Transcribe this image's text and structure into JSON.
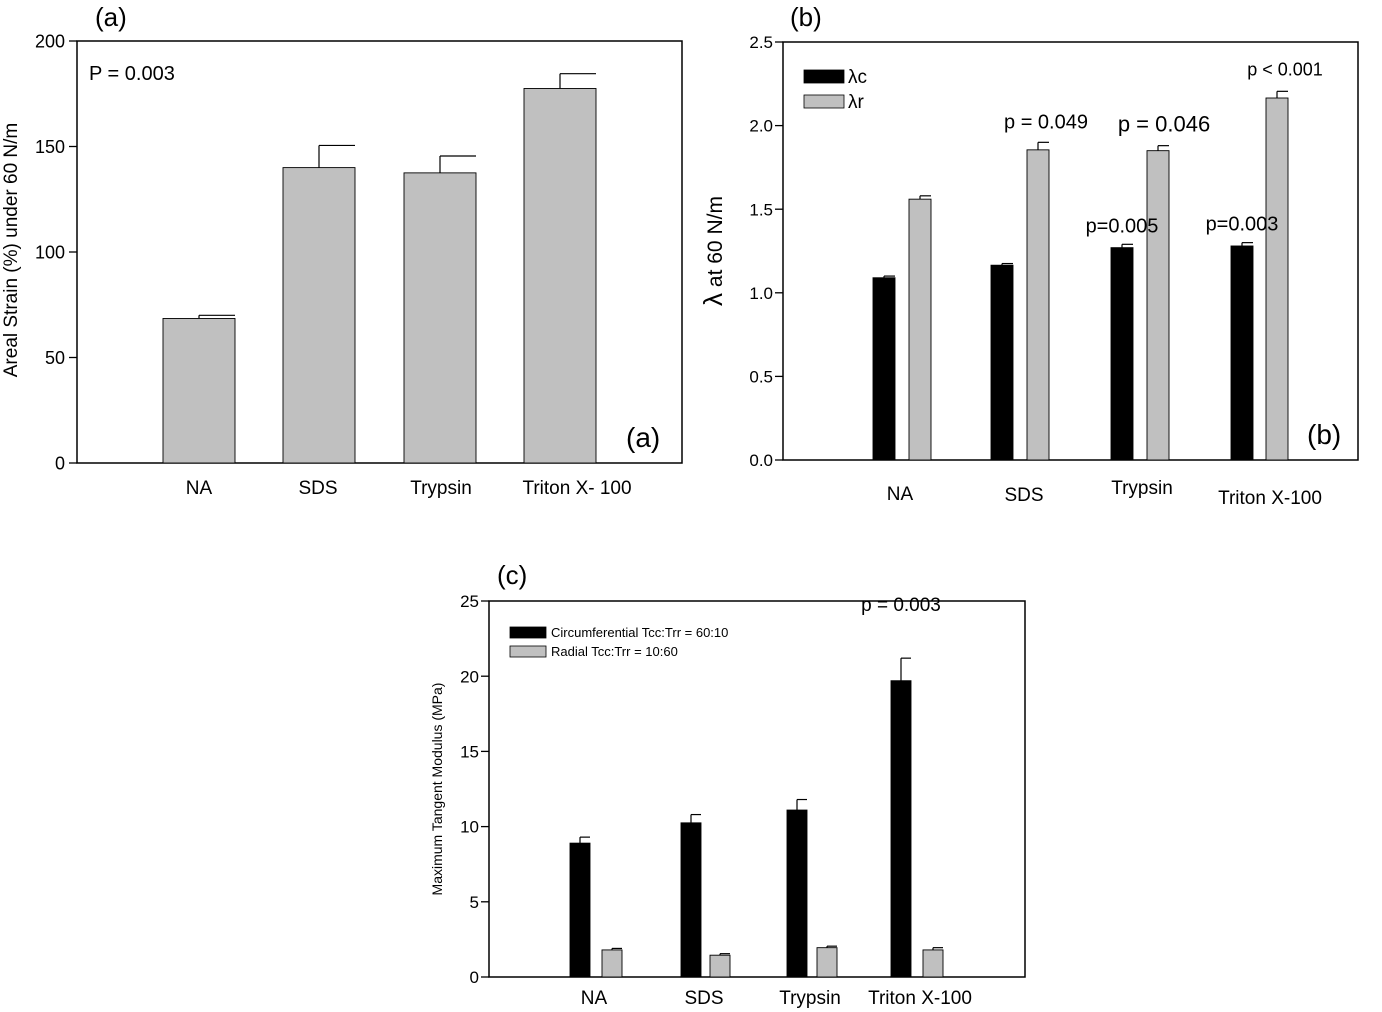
{
  "colors": {
    "light": "#c0c0c0",
    "dark": "#000000",
    "axis": "#000000"
  },
  "chart_data": [
    {
      "id": "a",
      "type": "bar",
      "panel_label": "(a)",
      "inner_label": "(a)",
      "title": "",
      "xlabel": "",
      "ylabel": "Areal Strain (%) under 60 N/m",
      "ylim": [
        0,
        200
      ],
      "yticks": [
        0,
        50,
        100,
        150,
        200
      ],
      "categories": [
        "NA",
        "SDS",
        "Trypsin",
        "Triton X-100"
      ],
      "category_display": [
        "NA",
        "SDS",
        "Trypsin",
        "Triton X- 100"
      ],
      "series": [
        {
          "name": "Areal Strain",
          "color": "#c0c0c0",
          "values": [
            68.5,
            140,
            137.5,
            177.5
          ],
          "errors": [
            1.5,
            10.5,
            8,
            7
          ]
        }
      ],
      "annotations": [
        {
          "text": "P = 0.003",
          "placement": "top-left"
        }
      ],
      "legend": null
    },
    {
      "id": "b",
      "type": "bar",
      "panel_label": "(b)",
      "inner_label": "(b)",
      "title": "",
      "xlabel": "",
      "ylabel_symbol": "λ",
      "ylabel_rest": " at 60 N/m",
      "ylim": [
        0,
        2.5
      ],
      "yticks": [
        "0.0",
        "0.5",
        "1.0",
        "1.5",
        "2.0",
        "2.5"
      ],
      "categories": [
        "NA",
        "SDS",
        "Trypsin",
        "Triton X-100"
      ],
      "series": [
        {
          "name": "λc",
          "color": "#000000",
          "values": [
            1.09,
            1.165,
            1.27,
            1.28
          ],
          "errors": [
            0.01,
            0.01,
            0.02,
            0.02
          ]
        },
        {
          "name": "λr",
          "color": "#c0c0c0",
          "values": [
            1.56,
            1.855,
            1.85,
            2.165
          ],
          "errors": [
            0.02,
            0.045,
            0.03,
            0.04
          ]
        }
      ],
      "annotations": [
        {
          "text": "p = 0.049",
          "category": "SDS",
          "series": "λr"
        },
        {
          "text": "p = 0.046",
          "category": "Trypsin",
          "series": "λr"
        },
        {
          "text": "p < 0.001",
          "category": "Triton X-100",
          "series": "λr"
        },
        {
          "text": "p=0.005",
          "category": "Trypsin",
          "series": "λc"
        },
        {
          "text": "p=0.003",
          "category": "Triton X-100",
          "series": "λc"
        }
      ],
      "legend": {
        "placement": "top-left",
        "entries": [
          "λc",
          "λr"
        ]
      }
    },
    {
      "id": "c",
      "type": "bar",
      "panel_label": "(c)",
      "title": "",
      "xlabel": "",
      "ylabel": "Maximum Tangent Modulus (MPa)",
      "ylim": [
        0,
        25
      ],
      "yticks": [
        0,
        5,
        10,
        15,
        20,
        25
      ],
      "categories": [
        "NA",
        "SDS",
        "Trypsin",
        "Triton X-100"
      ],
      "series": [
        {
          "name": "Circumferential Tcc:Trr = 60:10",
          "color": "#000000",
          "values": [
            8.9,
            10.25,
            11.1,
            19.7
          ],
          "errors": [
            0.4,
            0.55,
            0.7,
            1.5
          ]
        },
        {
          "name": "Radial Tcc:Trr = 10:60",
          "color": "#c0c0c0",
          "values": [
            1.8,
            1.45,
            1.95,
            1.8
          ],
          "errors": [
            0.1,
            0.1,
            0.1,
            0.15
          ]
        }
      ],
      "annotations": [
        {
          "text": "p = 0.003",
          "category": "Triton X-100",
          "series": "Circumferential Tcc:Trr = 60:10"
        }
      ],
      "legend": {
        "placement": "top-left",
        "entries": [
          "Circumferential Tcc:Trr = 60:10",
          "Radial Tcc:Trr = 10:60"
        ]
      }
    }
  ]
}
